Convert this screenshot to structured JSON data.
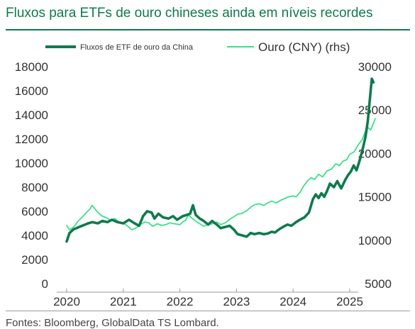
{
  "title": "Fluxos para ETFs de ouro chineses ainda em níveis recordes",
  "source": "Fontes: Bloomberg, GlobalData TS Lombard.",
  "colors": {
    "title": "#0f7a4d",
    "flows": "#0f7a4d",
    "gold": "#3ee08a",
    "rule": "#0f7a4d"
  },
  "chart_data": {
    "type": "line",
    "x_ticks": [
      "2020",
      "2021",
      "2022",
      "2023",
      "2024",
      "2025"
    ],
    "xlim": [
      2020.0,
      2025.45
    ],
    "y_left": {
      "ticks": [
        "18000",
        "16000",
        "14000",
        "12000",
        "10000",
        "8000",
        "6000",
        "4000",
        "2000",
        "0"
      ],
      "ylim": [
        0,
        18000
      ]
    },
    "y_right": {
      "ticks": [
        "30000",
        "25000",
        "20000",
        "15000",
        "10000",
        "5000"
      ],
      "ylim": [
        5000,
        30000
      ]
    },
    "grid": false,
    "legend_position": "top",
    "series": [
      {
        "name": "Fluxos de ETF de ouro da China",
        "axis": "left",
        "color": "#0f7a4d",
        "line_width": "thick",
        "points": [
          [
            2020.0,
            3500
          ],
          [
            2020.05,
            4200
          ],
          [
            2020.12,
            4500
          ],
          [
            2020.22,
            4700
          ],
          [
            2020.3,
            4850
          ],
          [
            2020.38,
            5000
          ],
          [
            2020.45,
            5100
          ],
          [
            2020.55,
            5000
          ],
          [
            2020.63,
            5200
          ],
          [
            2020.72,
            5100
          ],
          [
            2020.8,
            5300
          ],
          [
            2020.9,
            5100
          ],
          [
            2021.0,
            5000
          ],
          [
            2021.1,
            5300
          ],
          [
            2021.2,
            5000
          ],
          [
            2021.28,
            4800
          ],
          [
            2021.35,
            5600
          ],
          [
            2021.42,
            6000
          ],
          [
            2021.5,
            5900
          ],
          [
            2021.55,
            5400
          ],
          [
            2021.62,
            5800
          ],
          [
            2021.7,
            5500
          ],
          [
            2021.8,
            5400
          ],
          [
            2021.88,
            5600
          ],
          [
            2021.95,
            5300
          ],
          [
            2022.05,
            5600
          ],
          [
            2022.12,
            5700
          ],
          [
            2022.18,
            5800
          ],
          [
            2022.23,
            6500
          ],
          [
            2022.28,
            5700
          ],
          [
            2022.35,
            5400
          ],
          [
            2022.42,
            5200
          ],
          [
            2022.5,
            4900
          ],
          [
            2022.57,
            5200
          ],
          [
            2022.65,
            4900
          ],
          [
            2022.72,
            4600
          ],
          [
            2022.8,
            4700
          ],
          [
            2022.88,
            4800
          ],
          [
            2022.95,
            4500
          ],
          [
            2023.02,
            4100
          ],
          [
            2023.1,
            4000
          ],
          [
            2023.18,
            3900
          ],
          [
            2023.25,
            4200
          ],
          [
            2023.32,
            4100
          ],
          [
            2023.4,
            4200
          ],
          [
            2023.48,
            4100
          ],
          [
            2023.55,
            4150
          ],
          [
            2023.62,
            4300
          ],
          [
            2023.68,
            4250
          ],
          [
            2023.75,
            4500
          ],
          [
            2023.82,
            4700
          ],
          [
            2023.9,
            4900
          ],
          [
            2023.97,
            4800
          ],
          [
            2024.05,
            5100
          ],
          [
            2024.12,
            5300
          ],
          [
            2024.2,
            5500
          ],
          [
            2024.28,
            5900
          ],
          [
            2024.35,
            7000
          ],
          [
            2024.4,
            7400
          ],
          [
            2024.45,
            7100
          ],
          [
            2024.5,
            7500
          ],
          [
            2024.55,
            7200
          ],
          [
            2024.6,
            7700
          ],
          [
            2024.65,
            8300
          ],
          [
            2024.72,
            8000
          ],
          [
            2024.78,
            8500
          ],
          [
            2024.85,
            7900
          ],
          [
            2024.92,
            8600
          ],
          [
            2024.97,
            9000
          ],
          [
            2025.02,
            9300
          ],
          [
            2025.07,
            9800
          ],
          [
            2025.12,
            9400
          ],
          [
            2025.18,
            10300
          ],
          [
            2025.23,
            11200
          ],
          [
            2025.28,
            12200
          ],
          [
            2025.32,
            13500
          ],
          [
            2025.36,
            15500
          ],
          [
            2025.39,
            17000
          ],
          [
            2025.42,
            16700
          ]
        ]
      },
      {
        "name": "Ouro (CNY) (rhs)",
        "axis": "right",
        "color": "#3ee08a",
        "line_width": "thin",
        "points": [
          [
            2020.0,
            11700
          ],
          [
            2020.05,
            11200
          ],
          [
            2020.12,
            11500
          ],
          [
            2020.2,
            12200
          ],
          [
            2020.28,
            12700
          ],
          [
            2020.35,
            13200
          ],
          [
            2020.4,
            13500
          ],
          [
            2020.45,
            14000
          ],
          [
            2020.5,
            13600
          ],
          [
            2020.55,
            13200
          ],
          [
            2020.62,
            12800
          ],
          [
            2020.7,
            12600
          ],
          [
            2020.78,
            12300
          ],
          [
            2020.85,
            12500
          ],
          [
            2020.92,
            12100
          ],
          [
            2021.0,
            12000
          ],
          [
            2021.08,
            11600
          ],
          [
            2021.15,
            11200
          ],
          [
            2021.22,
            11400
          ],
          [
            2021.3,
            11800
          ],
          [
            2021.38,
            12100
          ],
          [
            2021.45,
            12000
          ],
          [
            2021.52,
            11600
          ],
          [
            2021.6,
            11900
          ],
          [
            2021.68,
            11700
          ],
          [
            2021.75,
            11800
          ],
          [
            2021.82,
            12000
          ],
          [
            2021.9,
            11900
          ],
          [
            2022.0,
            11800
          ],
          [
            2022.05,
            12100
          ],
          [
            2022.1,
            12300
          ],
          [
            2022.15,
            12900
          ],
          [
            2022.2,
            12600
          ],
          [
            2022.28,
            12200
          ],
          [
            2022.35,
            11900
          ],
          [
            2022.42,
            11600
          ],
          [
            2022.5,
            11800
          ],
          [
            2022.58,
            11900
          ],
          [
            2022.65,
            12100
          ],
          [
            2022.72,
            11800
          ],
          [
            2022.8,
            12000
          ],
          [
            2022.88,
            12400
          ],
          [
            2022.95,
            12700
          ],
          [
            2023.02,
            13000
          ],
          [
            2023.1,
            13100
          ],
          [
            2023.18,
            13400
          ],
          [
            2023.25,
            13800
          ],
          [
            2023.32,
            14100
          ],
          [
            2023.4,
            14200
          ],
          [
            2023.48,
            14000
          ],
          [
            2023.55,
            14300
          ],
          [
            2023.62,
            14500
          ],
          [
            2023.7,
            14300
          ],
          [
            2023.78,
            14600
          ],
          [
            2023.85,
            14800
          ],
          [
            2023.92,
            15000
          ],
          [
            2024.0,
            15100
          ],
          [
            2024.05,
            15000
          ],
          [
            2024.12,
            15500
          ],
          [
            2024.18,
            16200
          ],
          [
            2024.25,
            16800
          ],
          [
            2024.32,
            17200
          ],
          [
            2024.38,
            17000
          ],
          [
            2024.45,
            17600
          ],
          [
            2024.52,
            17300
          ],
          [
            2024.6,
            18000
          ],
          [
            2024.68,
            18200
          ],
          [
            2024.75,
            18800
          ],
          [
            2024.82,
            18600
          ],
          [
            2024.88,
            19100
          ],
          [
            2024.95,
            19300
          ],
          [
            2025.0,
            19900
          ],
          [
            2025.08,
            20200
          ],
          [
            2025.15,
            21000
          ],
          [
            2025.22,
            21600
          ],
          [
            2025.28,
            22600
          ],
          [
            2025.32,
            23000
          ],
          [
            2025.37,
            22700
          ],
          [
            2025.42,
            23500
          ],
          [
            2025.45,
            24000
          ]
        ]
      }
    ]
  }
}
